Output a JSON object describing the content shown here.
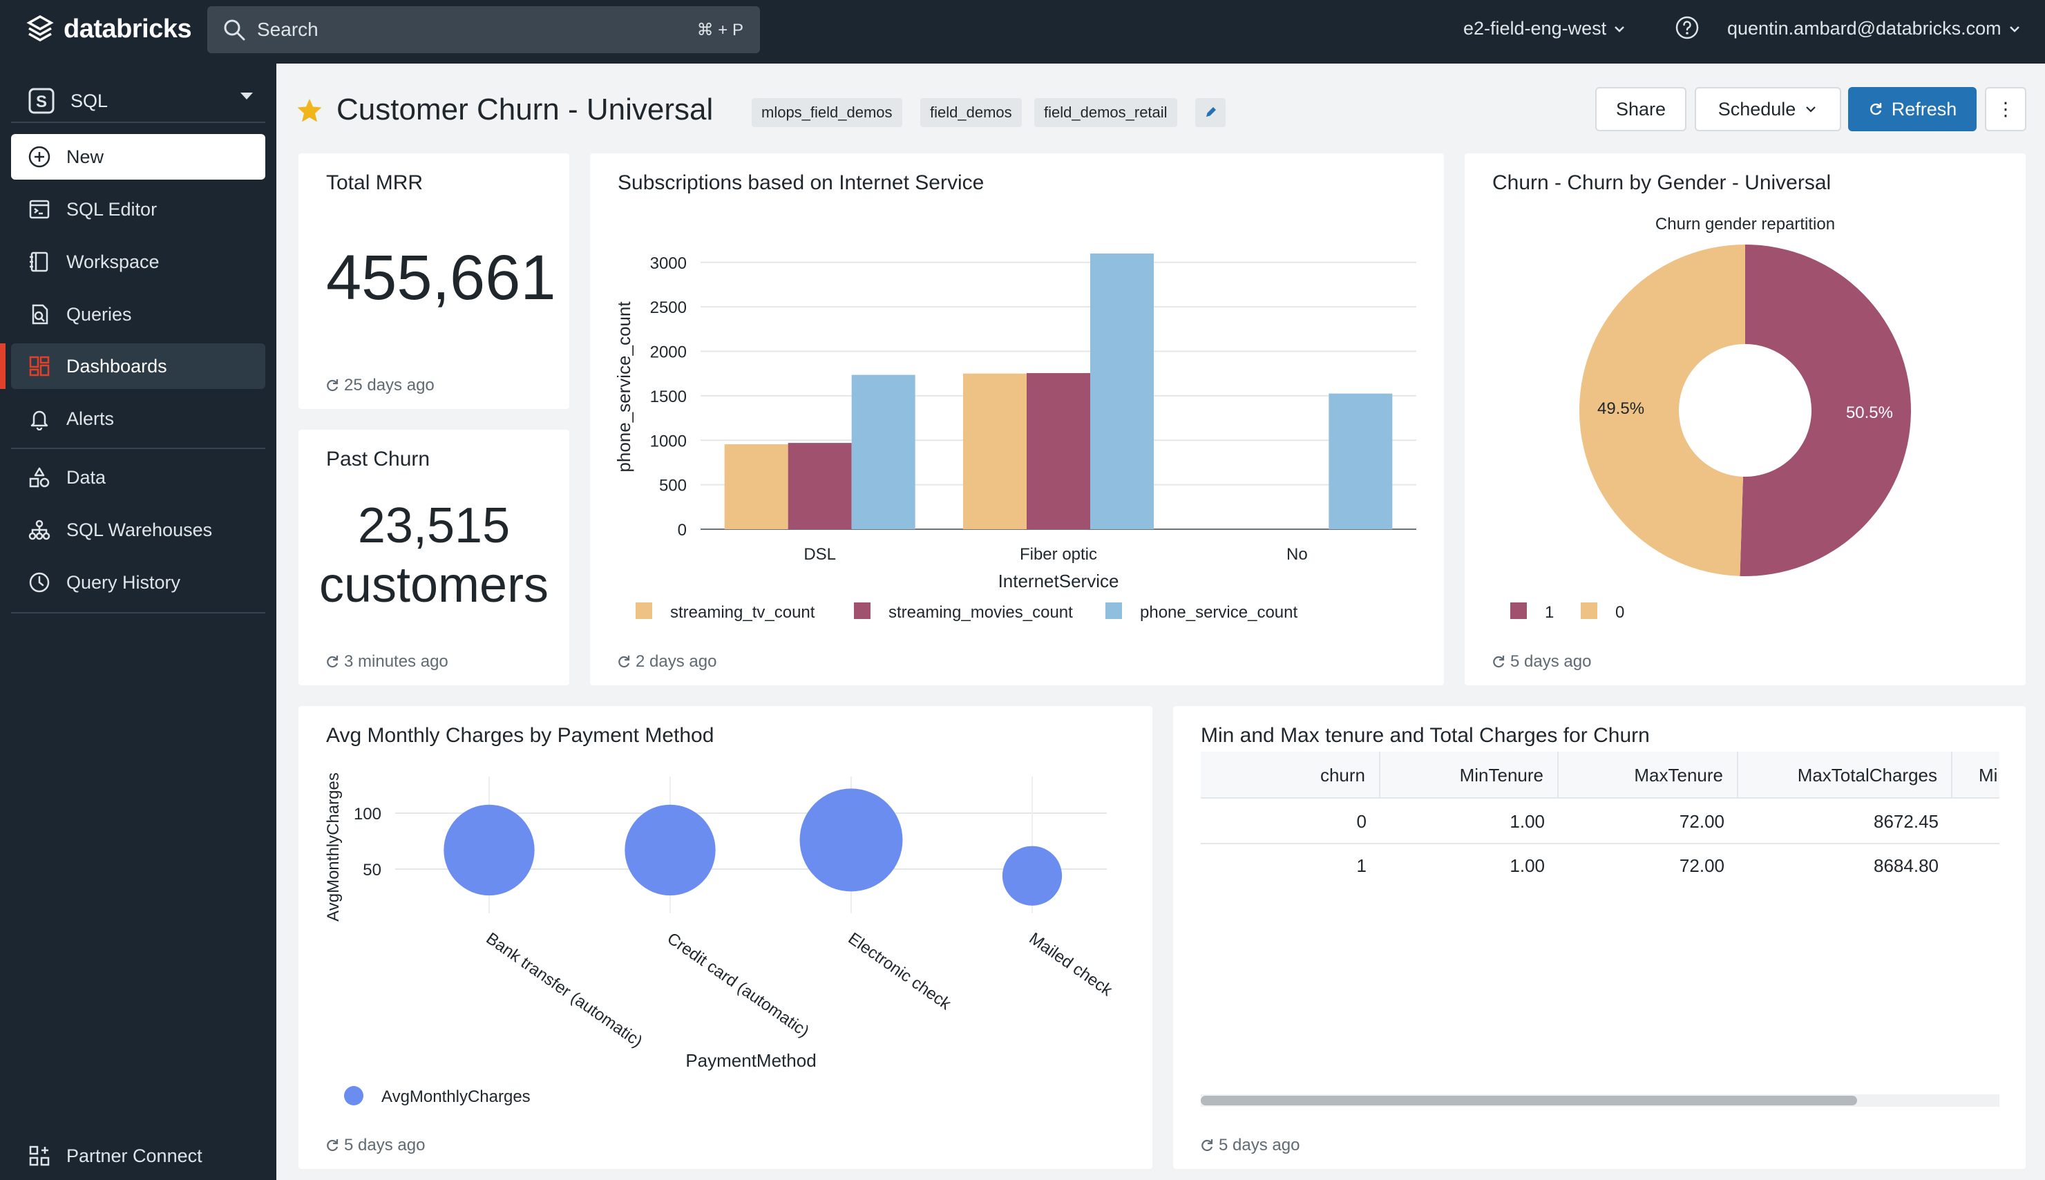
{
  "topbar": {
    "logo_text": "databricks",
    "search_label": "Search",
    "search_shortcut": "⌘ + P",
    "workspace": "e2-field-eng-west",
    "user": "quentin.ambard@databricks.com"
  },
  "sidebar": {
    "persona": "SQL",
    "items": [
      {
        "label": "New",
        "icon": "plus-circle-icon"
      },
      {
        "label": "SQL Editor",
        "icon": "sql-editor-icon"
      },
      {
        "label": "Workspace",
        "icon": "workspace-icon"
      },
      {
        "label": "Queries",
        "icon": "queries-icon"
      },
      {
        "label": "Dashboards",
        "icon": "dashboards-icon"
      },
      {
        "label": "Alerts",
        "icon": "bell-icon"
      },
      {
        "label": "Data",
        "icon": "data-icon"
      },
      {
        "label": "SQL Warehouses",
        "icon": "warehouse-icon"
      },
      {
        "label": "Query History",
        "icon": "clock-icon"
      },
      {
        "label": "Partner Connect",
        "icon": "partner-connect-icon"
      }
    ],
    "active": "Dashboards"
  },
  "header": {
    "title": "Customer Churn - Universal",
    "tags": [
      "mlops_field_demos",
      "field_demos",
      "field_demos_retail"
    ],
    "share_label": "Share",
    "schedule_label": "Schedule",
    "refresh_label": "Refresh",
    "more_label": "⋮"
  },
  "colors": {
    "accent": "#2272b4",
    "active_marker": "#e0412b",
    "series_tv": "#eec185",
    "series_movies": "#a0516e",
    "series_phone": "#90bedf",
    "bubble": "#6b8df0"
  },
  "widgets": {
    "total_mrr": {
      "title": "Total MRR",
      "value": "455,661",
      "updated": "25 days ago"
    },
    "past_churn": {
      "title": "Past Churn",
      "value_line1": "23,515",
      "value_line2": "customers",
      "updated": "3 minutes ago"
    },
    "subscriptions": {
      "title": "Subscriptions based on Internet Service",
      "updated": "2 days ago"
    },
    "gender": {
      "title": "Churn - Churn by Gender - Universal",
      "updated": "5 days ago"
    },
    "payment": {
      "title": "Avg Monthly Charges by Payment Method",
      "updated": "5 days ago"
    },
    "tenure": {
      "title": "Min and Max tenure and Total Charges for Churn",
      "updated": "5 days ago",
      "columns": [
        "churn",
        "MinTenure",
        "MaxTenure",
        "MaxTotalCharges",
        "Mi"
      ],
      "rows": [
        [
          "0",
          "1.00",
          "72.00",
          "8672.45"
        ],
        [
          "1",
          "1.00",
          "72.00",
          "8684.80"
        ]
      ]
    }
  },
  "chart_data": [
    {
      "type": "bar",
      "title": "",
      "xlabel": "InternetService",
      "ylabel": "phone_service_count",
      "categories": [
        "DSL",
        "Fiber optic",
        "No"
      ],
      "yticks": [
        "0",
        "500",
        "1000",
        "1500",
        "2000",
        "2500",
        "3000"
      ],
      "ylim": [
        0,
        3200
      ],
      "series": [
        {
          "name": "streaming_tv_count",
          "values": [
            955,
            1750,
            0
          ]
        },
        {
          "name": "streaming_movies_count",
          "values": [
            970,
            1755,
            0
          ]
        },
        {
          "name": "phone_service_count",
          "values": [
            1735,
            3100,
            1525
          ]
        }
      ],
      "legend": "bottom",
      "grid": true
    },
    {
      "type": "pie",
      "title": "Churn gender repartition",
      "labels": [
        "1",
        "0"
      ],
      "values": [
        50.5,
        49.5
      ],
      "value_labels": [
        "50.5%",
        "49.5%"
      ],
      "donut": true,
      "legend": "bottom"
    },
    {
      "type": "scatter",
      "title": "",
      "xlabel": "PaymentMethod",
      "ylabel": "AvgMonthlyCharges",
      "categories": [
        "Bank transfer (automatic)",
        "Credit card (automatic)",
        "Electronic check",
        "Mailed check"
      ],
      "yticks": [
        "50",
        "100"
      ],
      "ylim": [
        0,
        120
      ],
      "series": [
        {
          "name": "AvgMonthlyCharges",
          "values": [
            67,
            67,
            76,
            44
          ],
          "sizes": [
            67,
            67,
            76,
            44
          ]
        }
      ],
      "legend": "bottom",
      "grid": true
    }
  ]
}
